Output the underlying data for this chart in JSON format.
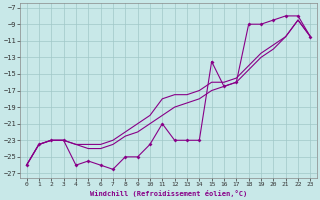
{
  "xlabel": "Windchill (Refroidissement éolien,°C)",
  "xlim": [
    -0.5,
    23.5
  ],
  "ylim": [
    -27.5,
    -6.5
  ],
  "xticks": [
    0,
    1,
    2,
    3,
    4,
    5,
    6,
    7,
    8,
    9,
    10,
    11,
    12,
    13,
    14,
    15,
    16,
    17,
    18,
    19,
    20,
    21,
    22,
    23
  ],
  "yticks": [
    -7,
    -9,
    -11,
    -13,
    -15,
    -17,
    -19,
    -21,
    -23,
    -25,
    -27
  ],
  "background_color": "#c8e8e8",
  "grid_color": "#a0c8c8",
  "line_color": "#880088",
  "line1_x": [
    0,
    1,
    2,
    3,
    4,
    5,
    6,
    7,
    8,
    9,
    10,
    11,
    12,
    13,
    14,
    15,
    16,
    17,
    18,
    19,
    20,
    21,
    22,
    23
  ],
  "line1_y": [
    -26,
    -23.5,
    -23,
    -23,
    -26,
    -25.5,
    -26,
    -26.5,
    -25,
    -25,
    -23.5,
    -21,
    -23,
    -23,
    -23,
    -13.5,
    -16.5,
    -16,
    -9,
    -9,
    -8.5,
    -8,
    -8,
    -10.5
  ],
  "line2_x": [
    0,
    1,
    2,
    3,
    4,
    5,
    6,
    7,
    8,
    9,
    10,
    11,
    12,
    13,
    14,
    15,
    16,
    17,
    18,
    19,
    20,
    21,
    22,
    23
  ],
  "line2_y": [
    -26,
    -23.5,
    -23,
    -23,
    -23.5,
    -23.5,
    -23.5,
    -23,
    -22,
    -21,
    -20,
    -18,
    -17.5,
    -17.5,
    -17,
    -16,
    -16,
    -15.5,
    -14,
    -12.5,
    -11.5,
    -10.5,
    -8.5,
    -10.5
  ],
  "line3_x": [
    0,
    1,
    2,
    3,
    4,
    5,
    6,
    7,
    8,
    9,
    10,
    11,
    12,
    13,
    14,
    15,
    16,
    17,
    18,
    19,
    20,
    21,
    22,
    23
  ],
  "line3_y": [
    -26,
    -23.5,
    -23,
    -23,
    -23.5,
    -24,
    -24,
    -23.5,
    -22.5,
    -22,
    -21,
    -20,
    -19,
    -18.5,
    -18,
    -17,
    -16.5,
    -16,
    -14.5,
    -13,
    -12,
    -10.5,
    -8.5,
    -10.5
  ]
}
